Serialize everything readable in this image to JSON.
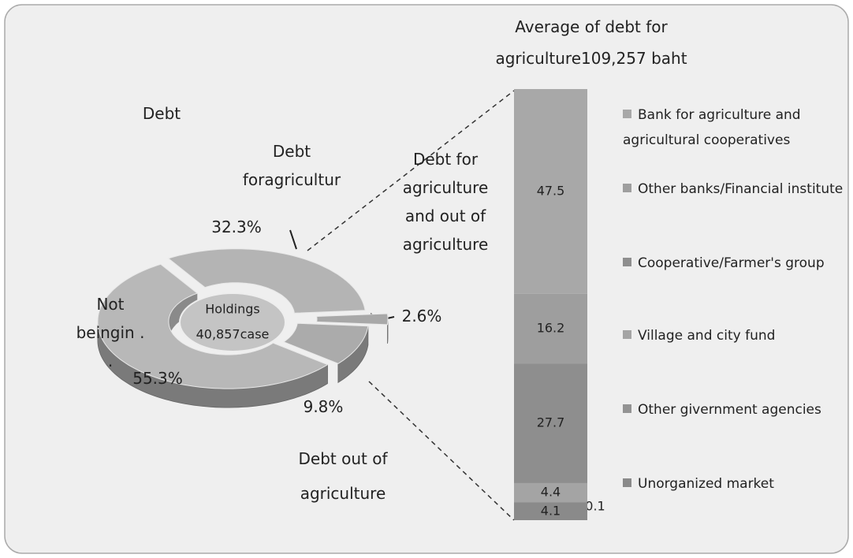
{
  "chart_data": [
    {
      "type": "pie",
      "title": "Debt",
      "center_text": [
        "Holdings",
        "40,857case"
      ],
      "categories": [
        "Debt foragricultur",
        "Debt for agriculture and out of agriculture",
        "Debt out of agriculture",
        "Not beingin . ."
      ],
      "values": [
        32.3,
        2.6,
        9.8,
        55.3
      ],
      "value_labels": [
        "32.3%",
        "2.6%",
        "9.8%",
        "55.3%"
      ],
      "colors": [
        "#b4b4b4",
        "#a8a8a8",
        "#ababab",
        "#b8b8b8"
      ]
    },
    {
      "type": "stacked-bar",
      "title": "Average of debt for agriculture109,257 baht",
      "series": [
        {
          "name": "Bank for agriculture and agricultural cooperatives",
          "color": "#a8a8a8",
          "values": [
            47.5
          ]
        },
        {
          "name": "Other banks/Financial institute",
          "color": "#9e9e9e",
          "values": [
            16.2
          ]
        },
        {
          "name": "Cooperative/Farmer's group",
          "color": "#8e8e8e",
          "values": [
            27.7
          ]
        },
        {
          "name": "Village and city fund",
          "color": "#a4a4a4",
          "values": [
            4.4
          ]
        },
        {
          "name": "Other givernment agencies",
          "color": "#939393",
          "values": [
            0.1
          ]
        },
        {
          "name": "Unorganized market",
          "color": "#8a8a8a",
          "values": [
            4.1
          ]
        }
      ]
    }
  ]
}
